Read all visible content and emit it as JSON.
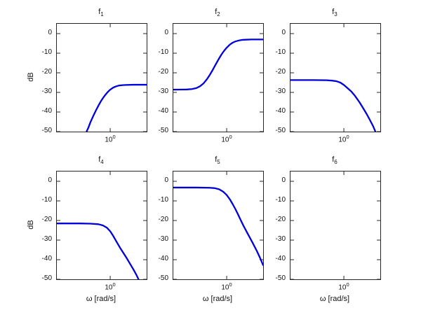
{
  "figure": {
    "background": "#ffffff",
    "description": "2x3 grid of frequency-response magnitude plots (Bode magnitude, semilog-x)"
  },
  "chart_data": {
    "layout": "grid-2x3",
    "shared": {
      "type": "line",
      "xscale": "log",
      "xlim": [
        0.2,
        3
      ],
      "ylim": [
        -50,
        5
      ],
      "yticks": [
        "0",
        "-10",
        "-20",
        "-30",
        "-40",
        "-50"
      ],
      "xtick_value": 1,
      "xtick_base": "10",
      "xtick_exp": "0",
      "grid": false,
      "legend": "none",
      "line_color": "#0000dc",
      "line_width": 2.3,
      "axis_color": "#262626"
    },
    "subplots": [
      {
        "title_base": "f",
        "title_sub": "1",
        "ylabel": "dB",
        "xlabel": "",
        "points": [
          [
            0.47,
            -52.5
          ],
          [
            0.49,
            -50
          ],
          [
            0.52,
            -47.8
          ],
          [
            0.55,
            -45.3
          ],
          [
            0.6,
            -42
          ],
          [
            0.65,
            -39.2
          ],
          [
            0.7,
            -36.8
          ],
          [
            0.75,
            -34.7
          ],
          [
            0.8,
            -33
          ],
          [
            0.85,
            -31.6
          ],
          [
            0.9,
            -30.4
          ],
          [
            0.95,
            -29.4
          ],
          [
            1.0,
            -28.6
          ],
          [
            1.1,
            -27.5
          ],
          [
            1.2,
            -26.9
          ],
          [
            1.3,
            -26.5
          ],
          [
            1.45,
            -26.3
          ],
          [
            1.6,
            -26.2
          ],
          [
            2.0,
            -26.1
          ],
          [
            2.5,
            -26.1
          ],
          [
            3.0,
            -26.1
          ]
        ]
      },
      {
        "title_base": "f",
        "title_sub": "2",
        "ylabel": "",
        "xlabel": "",
        "points": [
          [
            0.2,
            -28.6
          ],
          [
            0.3,
            -28.5
          ],
          [
            0.35,
            -28.3
          ],
          [
            0.4,
            -27.8
          ],
          [
            0.45,
            -26.8
          ],
          [
            0.5,
            -25.3
          ],
          [
            0.55,
            -23.3
          ],
          [
            0.6,
            -21.1
          ],
          [
            0.65,
            -18.8
          ],
          [
            0.7,
            -16.5
          ],
          [
            0.75,
            -14.4
          ],
          [
            0.8,
            -12.5
          ],
          [
            0.85,
            -10.8
          ],
          [
            0.9,
            -9.4
          ],
          [
            0.95,
            -8.2
          ],
          [
            1.0,
            -7.2
          ],
          [
            1.1,
            -5.6
          ],
          [
            1.2,
            -4.6
          ],
          [
            1.3,
            -4.0
          ],
          [
            1.45,
            -3.5
          ],
          [
            1.6,
            -3.2
          ],
          [
            1.8,
            -3.1
          ],
          [
            2.1,
            -3.0
          ],
          [
            2.5,
            -3.0
          ],
          [
            3.0,
            -3.0
          ]
        ]
      },
      {
        "title_base": "f",
        "title_sub": "3",
        "ylabel": "",
        "xlabel": "",
        "points": [
          [
            0.2,
            -23.7
          ],
          [
            0.4,
            -23.7
          ],
          [
            0.6,
            -23.8
          ],
          [
            0.7,
            -24.0
          ],
          [
            0.8,
            -24.3
          ],
          [
            0.9,
            -25.0
          ],
          [
            1.0,
            -26.2
          ],
          [
            1.1,
            -27.6
          ],
          [
            1.25,
            -29.5
          ],
          [
            1.4,
            -31.8
          ],
          [
            1.6,
            -35.0
          ],
          [
            1.8,
            -38.2
          ],
          [
            2.0,
            -41.2
          ],
          [
            2.2,
            -44.2
          ],
          [
            2.4,
            -47.0
          ],
          [
            2.62,
            -50.5
          ]
        ]
      },
      {
        "title_base": "f",
        "title_sub": "4",
        "ylabel": "dB",
        "xlabel": "ω [rad/s]",
        "points": [
          [
            0.2,
            -21.5
          ],
          [
            0.4,
            -21.5
          ],
          [
            0.55,
            -21.6
          ],
          [
            0.7,
            -21.9
          ],
          [
            0.8,
            -22.5
          ],
          [
            0.9,
            -23.6
          ],
          [
            1.0,
            -25.5
          ],
          [
            1.1,
            -28.0
          ],
          [
            1.2,
            -30.6
          ],
          [
            1.35,
            -34.0
          ],
          [
            1.5,
            -36.8
          ],
          [
            1.65,
            -39.3
          ],
          [
            1.8,
            -41.8
          ],
          [
            2.0,
            -44.8
          ],
          [
            2.2,
            -47.7
          ],
          [
            2.38,
            -50.5
          ]
        ]
      },
      {
        "title_base": "f",
        "title_sub": "5",
        "ylabel": "",
        "xlabel": "ω [rad/s]",
        "points": [
          [
            0.2,
            -3.2
          ],
          [
            0.4,
            -3.2
          ],
          [
            0.6,
            -3.3
          ],
          [
            0.7,
            -3.5
          ],
          [
            0.8,
            -4.1
          ],
          [
            0.9,
            -5.3
          ],
          [
            1.0,
            -7.0
          ],
          [
            1.1,
            -9.2
          ],
          [
            1.2,
            -11.7
          ],
          [
            1.3,
            -14.2
          ],
          [
            1.4,
            -16.7
          ],
          [
            1.5,
            -19.2
          ],
          [
            1.65,
            -22.5
          ],
          [
            1.8,
            -25.3
          ],
          [
            2.0,
            -28.6
          ],
          [
            2.2,
            -31.6
          ],
          [
            2.5,
            -35.8
          ],
          [
            2.75,
            -39.3
          ],
          [
            3.0,
            -42.8
          ]
        ]
      },
      {
        "title_base": "f",
        "title_sub": "6",
        "ylabel": "",
        "xlabel": "ω [rad/s]",
        "points": []
      }
    ]
  }
}
